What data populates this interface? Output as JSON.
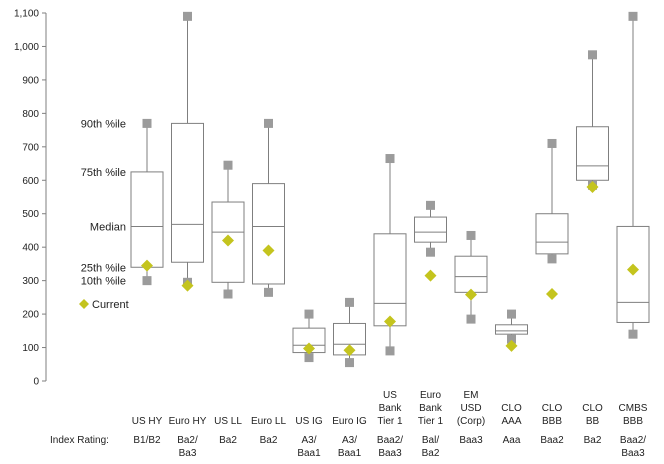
{
  "chart_data": {
    "type": "box",
    "title": "",
    "xlabel": "",
    "ylabel": "",
    "ylim": [
      0,
      1100
    ],
    "yticks": [
      "0",
      "100",
      "200",
      "300",
      "400",
      "500",
      "600",
      "700",
      "800",
      "900",
      "1,000",
      "1,100"
    ],
    "grid": false,
    "legend": {
      "placement": "left-inside",
      "items": [
        {
          "label": "90th %ile",
          "kind": "text"
        },
        {
          "label": "75th %ile",
          "kind": "text"
        },
        {
          "label": "Median",
          "kind": "text"
        },
        {
          "label": "25th %ile",
          "kind": "text"
        },
        {
          "label": "10th %ile",
          "kind": "text"
        },
        {
          "label": "Current",
          "kind": "diamond"
        }
      ]
    },
    "rating_header": "Index Rating:",
    "categories": [
      {
        "name": [
          "US HY"
        ],
        "rating": [
          "B1/B2"
        ]
      },
      {
        "name": [
          "Euro HY"
        ],
        "rating": [
          "Ba2/",
          "Ba3"
        ]
      },
      {
        "name": [
          "US LL"
        ],
        "rating": [
          "Ba2"
        ]
      },
      {
        "name": [
          "Euro LL"
        ],
        "rating": [
          "Ba2"
        ]
      },
      {
        "name": [
          "US IG"
        ],
        "rating": [
          "A3/",
          "Baa1"
        ]
      },
      {
        "name": [
          "Euro IG"
        ],
        "rating": [
          "A3/",
          "Baa1"
        ]
      },
      {
        "name": [
          "US",
          "Bank",
          "Tier 1"
        ],
        "rating": [
          "Baa2/",
          "Baa3"
        ]
      },
      {
        "name": [
          "Euro",
          "Bank",
          "Tier 1"
        ],
        "rating": [
          "Bal/",
          "Ba2"
        ]
      },
      {
        "name": [
          "EM",
          "USD",
          "(Corp)"
        ],
        "rating": [
          "Baa3"
        ]
      },
      {
        "name": [
          "CLO",
          "AAA"
        ],
        "rating": [
          "Aaa"
        ]
      },
      {
        "name": [
          "CLO",
          "BBB"
        ],
        "rating": [
          "Baa2"
        ]
      },
      {
        "name": [
          "CLO",
          "BB"
        ],
        "rating": [
          "Ba2"
        ]
      },
      {
        "name": [
          "CMBS",
          "BBB"
        ],
        "rating": [
          "Baa2/",
          "Baa3"
        ]
      }
    ],
    "series": [
      {
        "name": "10th %ile",
        "values": [
          300,
          295,
          260,
          265,
          70,
          55,
          90,
          385,
          185,
          125,
          365,
          585,
          140
        ]
      },
      {
        "name": "25th %ile",
        "values": [
          340,
          355,
          295,
          290,
          85,
          78,
          165,
          415,
          265,
          140,
          380,
          600,
          175
        ]
      },
      {
        "name": "Median",
        "values": [
          462,
          468,
          445,
          462,
          107,
          110,
          232,
          445,
          312,
          150,
          415,
          643,
          235
        ]
      },
      {
        "name": "75th %ile",
        "values": [
          625,
          770,
          535,
          590,
          158,
          172,
          440,
          490,
          373,
          168,
          500,
          760,
          462
        ]
      },
      {
        "name": "90th %ile",
        "values": [
          770,
          1090,
          645,
          770,
          200,
          235,
          665,
          525,
          435,
          200,
          710,
          975,
          1090
        ]
      },
      {
        "name": "Current",
        "values": [
          345,
          285,
          420,
          390,
          97,
          92,
          178,
          315,
          258,
          105,
          260,
          580,
          333
        ]
      }
    ],
    "colors": {
      "box": "#7f7f7f",
      "whisker": "#7f7f7f",
      "marker": "#9b9b9b",
      "current": "#c4c41e",
      "axis": "#7f7f7f"
    }
  }
}
